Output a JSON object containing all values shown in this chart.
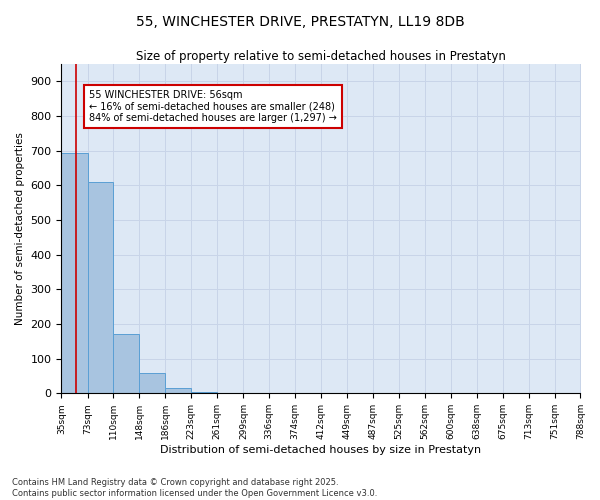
{
  "title": "55, WINCHESTER DRIVE, PRESTATYN, LL19 8DB",
  "subtitle": "Size of property relative to semi-detached houses in Prestatyn",
  "xlabel": "Distribution of semi-detached houses by size in Prestatyn",
  "ylabel": "Number of semi-detached properties",
  "footnote": "Contains HM Land Registry data © Crown copyright and database right 2025.\nContains public sector information licensed under the Open Government Licence v3.0.",
  "bar_edges": [
    35,
    73,
    110,
    148,
    186,
    223,
    261,
    299,
    336,
    374,
    412,
    449,
    487,
    525,
    562,
    600,
    638,
    675,
    713,
    751,
    788
  ],
  "bar_heights": [
    695,
    610,
    170,
    60,
    15,
    4,
    1,
    0,
    0,
    0,
    0,
    0,
    0,
    0,
    0,
    0,
    0,
    0,
    0,
    0
  ],
  "bar_color": "#a8c4e0",
  "bar_edge_color": "#5a9fd4",
  "property_size": 56,
  "annotation_text": "55 WINCHESTER DRIVE: 56sqm\n← 16% of semi-detached houses are smaller (248)\n84% of semi-detached houses are larger (1,297) →",
  "annotation_box_color": "#cc0000",
  "vline_color": "#cc0000",
  "ylim": [
    0,
    950
  ],
  "yticks": [
    0,
    100,
    200,
    300,
    400,
    500,
    600,
    700,
    800,
    900
  ],
  "grid_color": "#c8d4e8",
  "background_color": "#dde8f5",
  "tick_labels": [
    "35sqm",
    "73sqm",
    "110sqm",
    "148sqm",
    "186sqm",
    "223sqm",
    "261sqm",
    "299sqm",
    "336sqm",
    "374sqm",
    "412sqm",
    "449sqm",
    "487sqm",
    "525sqm",
    "562sqm",
    "600sqm",
    "638sqm",
    "675sqm",
    "713sqm",
    "751sqm",
    "788sqm"
  ]
}
